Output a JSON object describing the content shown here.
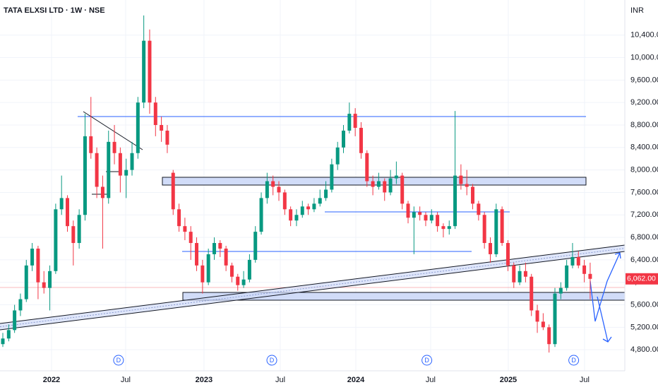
{
  "chart_data": {
    "type": "candlestick",
    "title": "TATA ELXSI LTD · 1W · NSE",
    "currency": "INR",
    "up_color": "#089981",
    "down_color": "#f23645",
    "grid": true,
    "xlim": [
      -0.48,
      105.9
    ],
    "ylim": [
      4425,
      11025
    ],
    "xticks": [
      {
        "value": 8.29,
        "label": "2022"
      },
      {
        "value": 20.91,
        "label": "Jul"
      },
      {
        "value": 34.25,
        "label": "2023"
      },
      {
        "value": 47.24,
        "label": "Jul"
      },
      {
        "value": 60.1,
        "label": "2024"
      },
      {
        "value": 72.84,
        "label": "Jul"
      },
      {
        "value": 86.06,
        "label": "2025"
      },
      {
        "value": 99.04,
        "label": "Jul"
      }
    ],
    "yticks": [
      {
        "value": 4800,
        "label": "4,800.00"
      },
      {
        "value": 5200,
        "label": "5,200.00"
      },
      {
        "value": 5600,
        "label": "5,600.00"
      },
      {
        "value": 6000,
        "label": "6,000.00"
      },
      {
        "value": 6400,
        "label": "6,400.00"
      },
      {
        "value": 6800,
        "label": "6,800.00"
      },
      {
        "value": 7200,
        "label": "7,200.00"
      },
      {
        "value": 7600,
        "label": "7,600.00"
      },
      {
        "value": 8000,
        "label": "8,000.00"
      },
      {
        "value": 8400,
        "label": "8,400.00"
      },
      {
        "value": 8800,
        "label": "8,800.00"
      },
      {
        "value": 9200,
        "label": "9,200.00"
      },
      {
        "value": 9600,
        "label": "9,600.00"
      },
      {
        "value": 10000,
        "label": "10,000.00"
      },
      {
        "value": 10400,
        "label": "10,400.00"
      }
    ],
    "last_price": 6062,
    "last_price_label": "6,062.00",
    "dividend_markers": [
      {
        "x": 19.7,
        "label": "D"
      },
      {
        "x": 45.8,
        "label": "D"
      },
      {
        "x": 72.2,
        "label": "D"
      },
      {
        "x": 97.2,
        "label": "D"
      }
    ],
    "ohlc": [
      [
        4900,
        5100,
        4850,
        5000
      ],
      [
        5000,
        5250,
        4950,
        5150
      ],
      [
        5150,
        5600,
        5100,
        5500
      ],
      [
        5500,
        5800,
        5400,
        5700
      ],
      [
        5700,
        6400,
        5650,
        6300
      ],
      [
        6300,
        6700,
        6200,
        6600
      ],
      [
        6600,
        6650,
        5700,
        6000
      ],
      [
        6000,
        6200,
        5800,
        5900
      ],
      [
        5900,
        6300,
        5500,
        6200
      ],
      [
        6200,
        7400,
        6150,
        7300
      ],
      [
        7300,
        7900,
        7200,
        7500
      ],
      [
        7500,
        7550,
        6900,
        7000
      ],
      [
        7000,
        7100,
        6300,
        6700
      ],
      [
        6700,
        7300,
        6600,
        7200
      ],
      [
        7200,
        9000,
        7100,
        8600
      ],
      [
        8600,
        9300,
        8200,
        8300
      ],
      [
        8300,
        8400,
        7500,
        7700
      ],
      [
        7700,
        7900,
        6600,
        7500
      ],
      [
        7500,
        8700,
        7400,
        8500
      ],
      [
        8500,
        8800,
        8100,
        8300
      ],
      [
        8300,
        8400,
        7600,
        7900
      ],
      [
        7900,
        8200,
        7500,
        8000
      ],
      [
        8000,
        8500,
        7900,
        8300
      ],
      [
        8300,
        9300,
        8200,
        9200
      ],
      [
        9200,
        10750,
        9100,
        10300
      ],
      [
        10300,
        10500,
        9000,
        9200
      ],
      [
        9200,
        9300,
        8600,
        8800
      ],
      [
        8800,
        8950,
        8500,
        8700
      ],
      [
        8700,
        8800,
        8300,
        8450
      ],
      [
        7950,
        8000,
        7200,
        7300
      ],
      [
        7300,
        7400,
        6900,
        7000
      ],
      [
        7000,
        7150,
        6750,
        6900
      ],
      [
        6900,
        7000,
        6400,
        6700
      ],
      [
        6700,
        6800,
        6200,
        6300
      ],
      [
        6300,
        6400,
        5800,
        6000
      ],
      [
        6000,
        6600,
        5950,
        6500
      ],
      [
        6500,
        6800,
        6400,
        6700
      ],
      [
        6700,
        6750,
        6450,
        6600
      ],
      [
        6600,
        6650,
        6200,
        6300
      ],
      [
        6300,
        6350,
        6000,
        6100
      ],
      [
        6100,
        6150,
        5850,
        5950
      ],
      [
        5950,
        6200,
        5900,
        6050
      ],
      [
        6050,
        6500,
        6000,
        6400
      ],
      [
        6400,
        7000,
        6350,
        6900
      ],
      [
        6900,
        7600,
        6850,
        7500
      ],
      [
        7500,
        7950,
        7400,
        7800
      ],
      [
        7800,
        7900,
        7550,
        7700
      ],
      [
        7700,
        7800,
        7450,
        7600
      ],
      [
        7600,
        7650,
        7200,
        7300
      ],
      [
        7300,
        7350,
        7000,
        7100
      ],
      [
        7100,
        7300,
        7000,
        7200
      ],
      [
        7200,
        7450,
        7150,
        7350
      ],
      [
        7350,
        7400,
        7200,
        7300
      ],
      [
        7300,
        7500,
        7250,
        7400
      ],
      [
        7400,
        7650,
        7350,
        7500
      ],
      [
        7500,
        7800,
        7450,
        7650
      ],
      [
        7650,
        8200,
        7600,
        8100
      ],
      [
        8100,
        8500,
        8000,
        8400
      ],
      [
        8400,
        8800,
        8300,
        8700
      ],
      [
        8700,
        9200,
        8650,
        9000
      ],
      [
        9000,
        9100,
        8600,
        8750
      ],
      [
        8750,
        8850,
        8200,
        8300
      ],
      [
        8300,
        8350,
        7700,
        7800
      ],
      [
        7800,
        7900,
        7550,
        7700
      ],
      [
        7700,
        7950,
        7650,
        7800
      ],
      [
        7800,
        7850,
        7450,
        7600
      ],
      [
        7600,
        8000,
        7550,
        7850
      ],
      [
        7850,
        8150,
        7750,
        7900
      ],
      [
        7900,
        7950,
        7300,
        7400
      ],
      [
        7400,
        7450,
        7050,
        7150
      ],
      [
        7150,
        7350,
        6500,
        7250
      ],
      [
        7250,
        7350,
        7100,
        7200
      ],
      [
        7200,
        7250,
        7000,
        7100
      ],
      [
        7100,
        7300,
        7050,
        7200
      ],
      [
        7200,
        7250,
        6900,
        7000
      ],
      [
        7000,
        7050,
        6800,
        6950
      ],
      [
        6950,
        7100,
        6850,
        7000
      ],
      [
        7000,
        9050,
        6950,
        7900
      ],
      [
        7900,
        8100,
        7650,
        7750
      ],
      [
        7750,
        8000,
        7550,
        7700
      ],
      [
        7700,
        7750,
        7300,
        7400
      ],
      [
        7400,
        7450,
        7100,
        7200
      ],
      [
        7200,
        7250,
        6600,
        6700
      ],
      [
        6700,
        6800,
        6350,
        6500
      ],
      [
        6500,
        7400,
        6450,
        7300
      ],
      [
        7300,
        7350,
        6650,
        6700
      ],
      [
        6700,
        6750,
        6200,
        6300
      ],
      [
        6300,
        6350,
        5900,
        6000
      ],
      [
        6000,
        6300,
        5950,
        6200
      ],
      [
        6200,
        6350,
        6000,
        6100
      ],
      [
        6100,
        6150,
        5400,
        5500
      ],
      [
        5500,
        5600,
        5100,
        5300
      ],
      [
        5300,
        5450,
        5150,
        5200
      ],
      [
        5200,
        5250,
        4750,
        4900
      ],
      [
        4900,
        5900,
        4850,
        5800
      ],
      [
        5800,
        6000,
        5700,
        5900
      ],
      [
        5900,
        6400,
        5850,
        6300
      ],
      [
        6300,
        6700,
        6250,
        6450
      ],
      [
        6450,
        6550,
        6250,
        6300
      ],
      [
        6300,
        6400,
        6000,
        6150
      ],
      [
        6150,
        6350,
        5700,
        6062
      ]
    ]
  }
}
